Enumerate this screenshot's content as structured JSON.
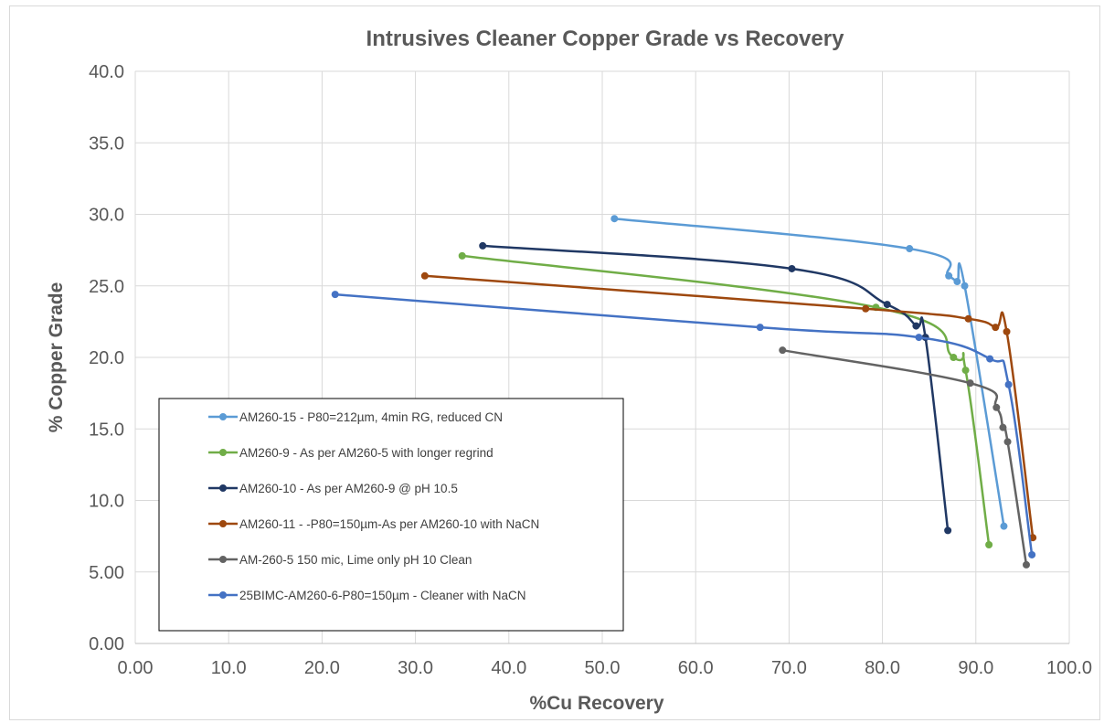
{
  "chart_data": {
    "type": "scatter",
    "title": "Intrusives Cleaner Copper Grade vs Recovery",
    "xlabel": "%Cu Recovery",
    "ylabel": "% Copper Grade",
    "xlim": [
      0,
      100
    ],
    "ylim": [
      0,
      40
    ],
    "x_ticks": [
      "0.00",
      "10.0",
      "20.0",
      "30.0",
      "40.0",
      "50.0",
      "60.0",
      "70.0",
      "80.0",
      "90.0",
      "100.0"
    ],
    "y_ticks": [
      "0.00",
      "5.00",
      "10.0",
      "15.0",
      "20.0",
      "25.0",
      "30.0",
      "35.0",
      "40.0"
    ],
    "grid": true,
    "legend_position": "bottom-left",
    "series": [
      {
        "name": "AM260-15 - P80=212µm, 4min RG, reduced CN",
        "color": "#5b9bd5",
        "points": [
          [
            51.3,
            29.7
          ],
          [
            82.9,
            27.6
          ],
          [
            87.1,
            25.7
          ],
          [
            88.0,
            25.3
          ],
          [
            88.8,
            25.0
          ],
          [
            93.0,
            8.2
          ]
        ]
      },
      {
        "name": "AM260-9 - As per AM260-5 with longer regrind",
        "color": "#70ad47",
        "points": [
          [
            35.0,
            27.1
          ],
          [
            79.3,
            23.5
          ],
          [
            87.6,
            20.0
          ],
          [
            88.9,
            19.1
          ],
          [
            91.4,
            6.9
          ]
        ]
      },
      {
        "name": "AM260-10 - As per AM260-9 @ pH 10.5",
        "color": "#203864",
        "points": [
          [
            37.2,
            27.8
          ],
          [
            70.3,
            26.2
          ],
          [
            80.5,
            23.7
          ],
          [
            83.6,
            22.2
          ],
          [
            84.6,
            21.4
          ],
          [
            87.0,
            7.9
          ]
        ]
      },
      {
        "name": "AM260-11 - -P80=150µm-As per AM260-10 with NaCN",
        "color": "#9e480e",
        "points": [
          [
            31.0,
            25.7
          ],
          [
            78.2,
            23.4
          ],
          [
            89.2,
            22.7
          ],
          [
            92.1,
            22.1
          ],
          [
            93.3,
            21.8
          ],
          [
            96.1,
            7.4
          ]
        ]
      },
      {
        "name": "AM-260-5 150 mic, Lime only pH 10 Clean",
        "color": "#636363",
        "points": [
          [
            69.3,
            20.5
          ],
          [
            89.4,
            18.2
          ],
          [
            92.2,
            16.5
          ],
          [
            92.9,
            15.1
          ],
          [
            93.4,
            14.1
          ],
          [
            95.4,
            5.5
          ]
        ]
      },
      {
        "name": "25BIMC-AM260-6-P80=150µm - Cleaner with NaCN",
        "color": "#4472c4",
        "points": [
          [
            21.4,
            24.4
          ],
          [
            66.9,
            22.1
          ],
          [
            83.9,
            21.4
          ],
          [
            91.5,
            19.9
          ],
          [
            93.5,
            18.1
          ],
          [
            96.0,
            6.2
          ]
        ]
      }
    ]
  }
}
